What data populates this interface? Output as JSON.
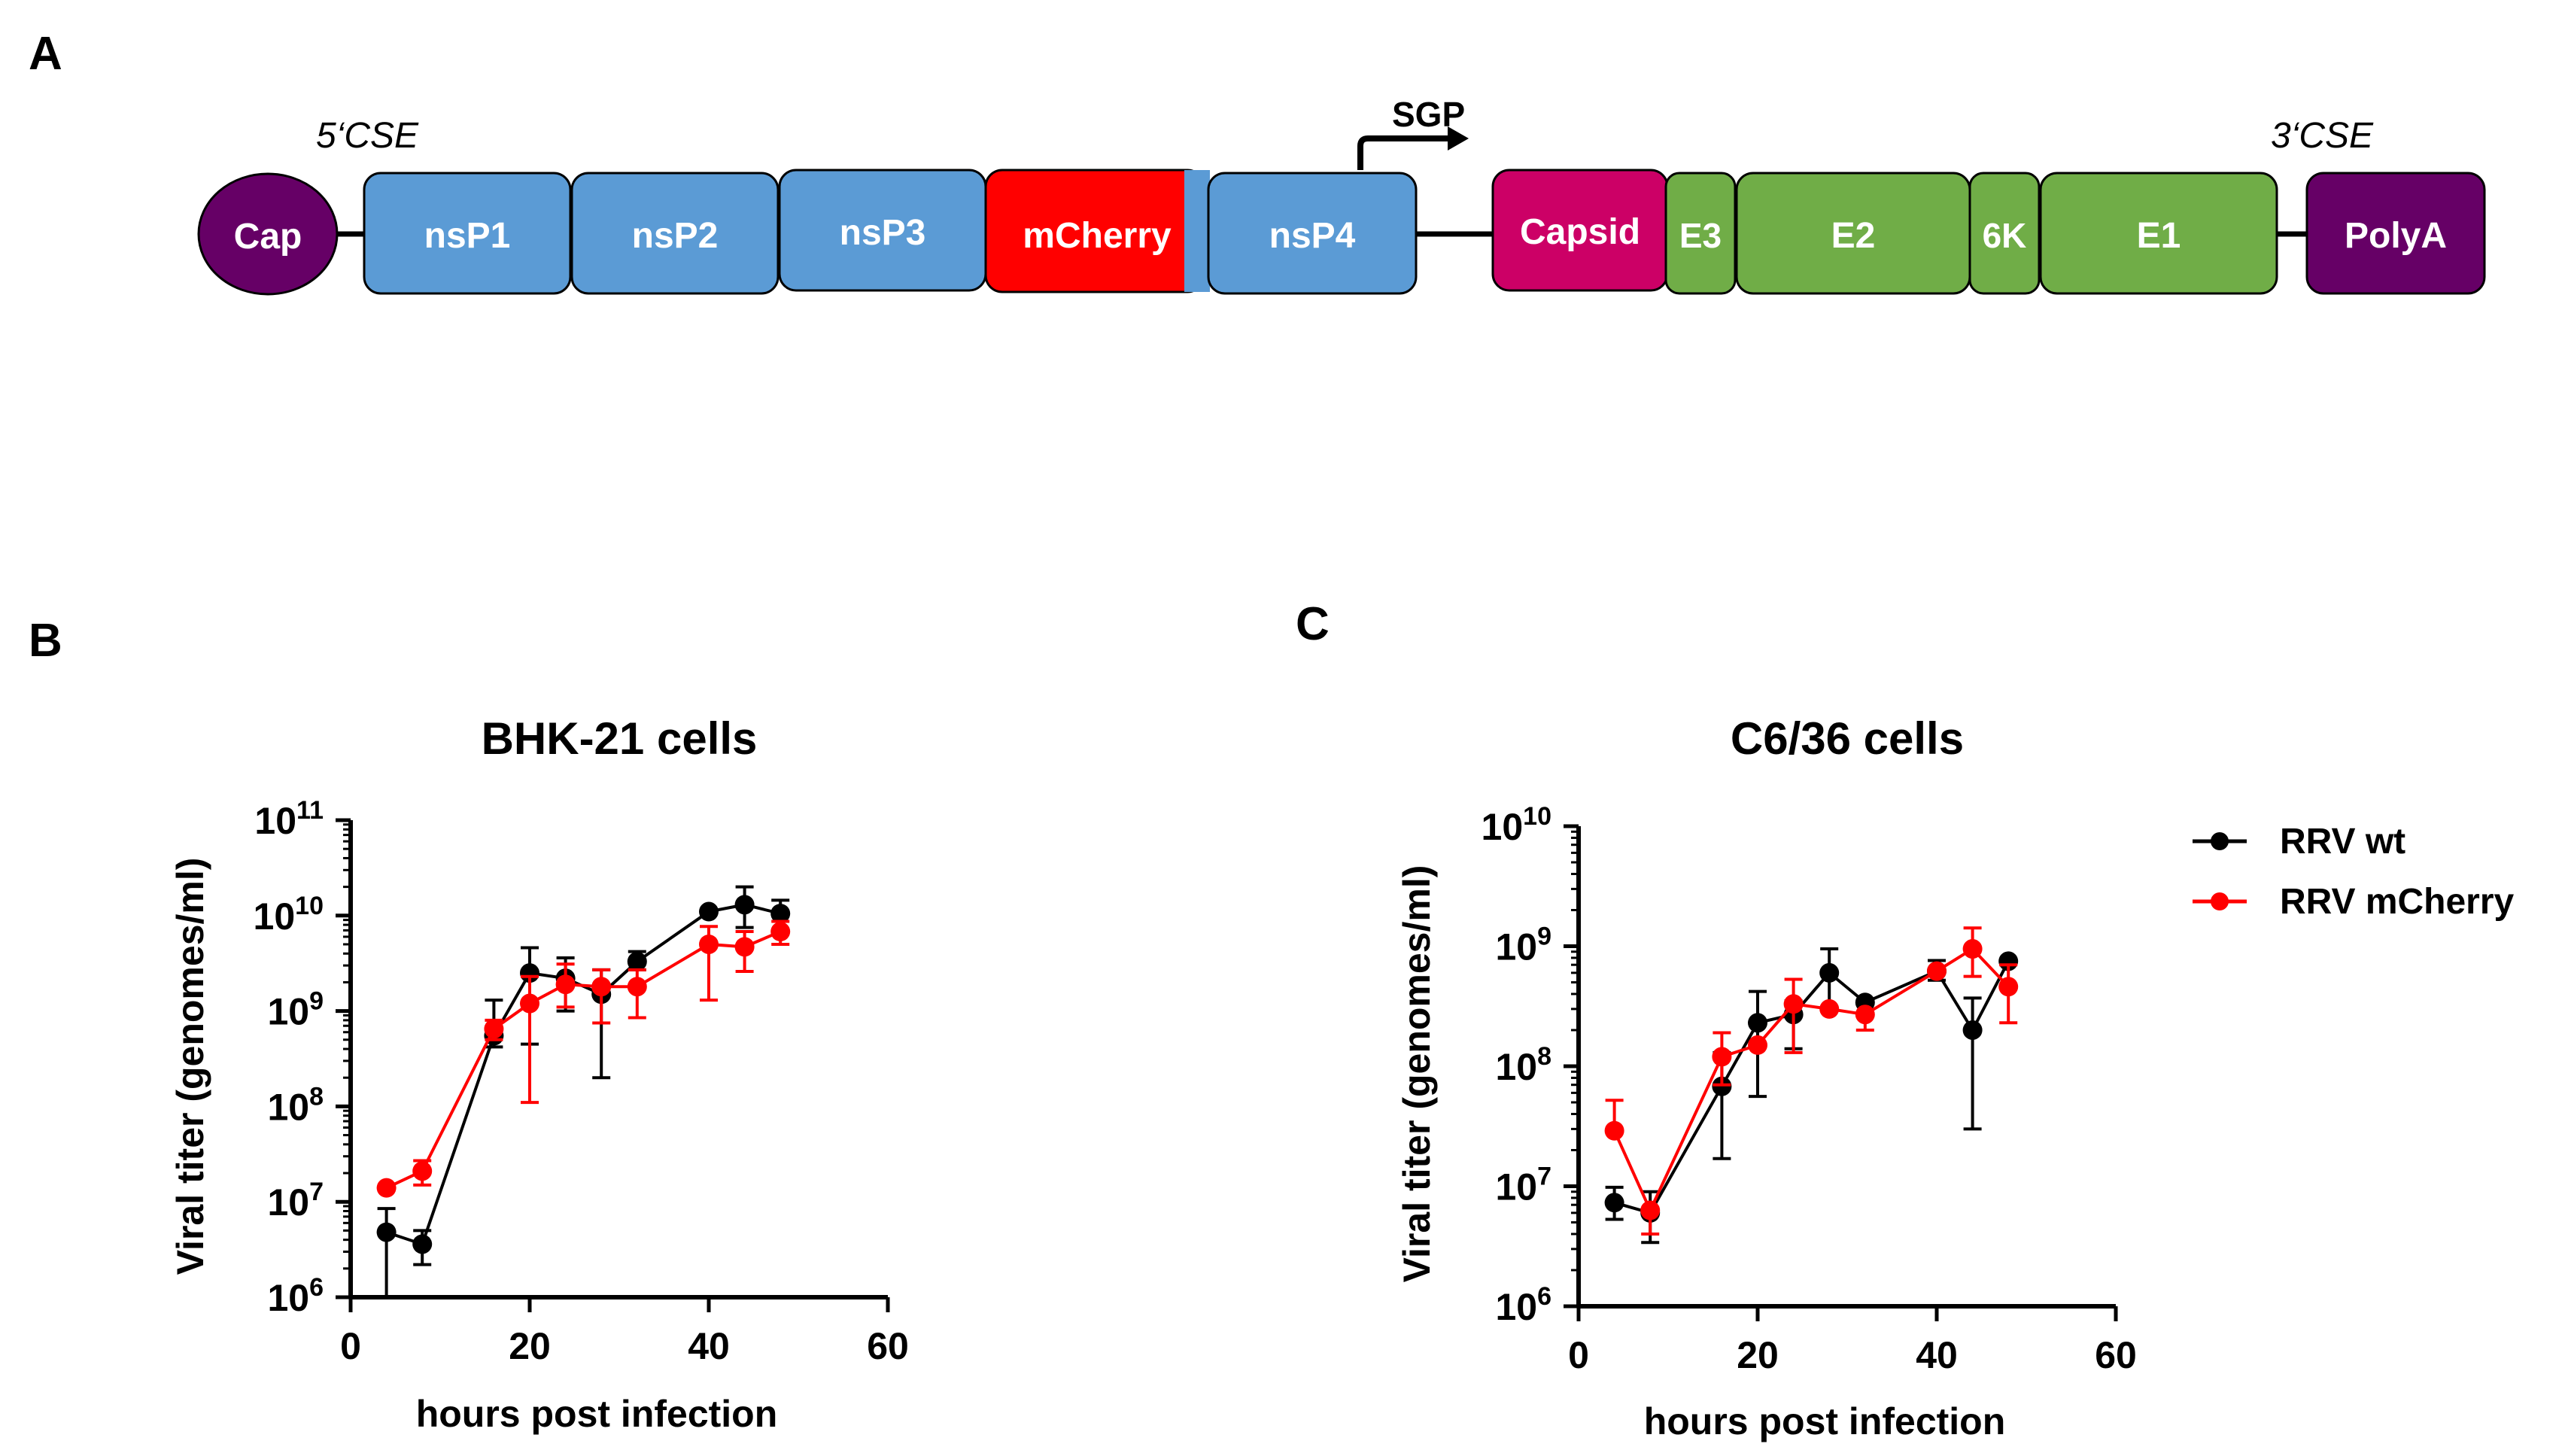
{
  "panels": {
    "a_label": "A",
    "b_label": "B",
    "c_label": "C"
  },
  "genome": {
    "cse5_label": "5‘CSE",
    "cse3_label": "3‘CSE",
    "sgp_label": "SGP",
    "cap": {
      "label": "Cap",
      "color": "#660066"
    },
    "polya": {
      "label": "PolyA",
      "color": "#660066"
    },
    "nonstructural": [
      {
        "label": "nsP1",
        "color": "#5b9bd5"
      },
      {
        "label": "nsP2",
        "color": "#5b9bd5"
      },
      {
        "label": "nsP3",
        "color": "#5b9bd5"
      },
      {
        "label": "mCherry",
        "color": "#ff0000"
      },
      {
        "label": "nsP4",
        "color": "#5b9bd5"
      }
    ],
    "structural": [
      {
        "label": "Capsid",
        "color": "#cc0066"
      },
      {
        "label": "E3",
        "color": "#70ad47"
      },
      {
        "label": "E2",
        "color": "#70ad47"
      },
      {
        "label": "6K",
        "color": "#70ad47"
      },
      {
        "label": "E1",
        "color": "#70ad47"
      }
    ]
  },
  "legend": {
    "items": [
      {
        "label": "RRV wt",
        "color": "#000000"
      },
      {
        "label": "RRV mCherry",
        "color": "#ff0000"
      }
    ]
  },
  "chart_data": [
    {
      "type": "line",
      "title": "BHK-21 cells",
      "xlabel": "hours post infection",
      "ylabel": "Viral titer (genomes/ml)",
      "xlim": [
        0,
        60
      ],
      "xticks": [
        0,
        20,
        40,
        60
      ],
      "ylim": [
        1000000,
        100000000000
      ],
      "yscale": "log",
      "yticks": [
        {
          "base": "10",
          "exp": "6"
        },
        {
          "base": "10",
          "exp": "7"
        },
        {
          "base": "10",
          "exp": "8"
        },
        {
          "base": "10",
          "exp": "9"
        },
        {
          "base": "10",
          "exp": "10"
        },
        {
          "base": "10",
          "exp": "11"
        }
      ],
      "grid": false,
      "series": [
        {
          "name": "RRV wt",
          "color": "#000000",
          "x": [
            4,
            8,
            16,
            20,
            24,
            28,
            32,
            40,
            44,
            48
          ],
          "y": [
            4800000,
            3600000,
            550000000,
            2500000000,
            2200000000,
            1500000000,
            3300000000,
            11000000000,
            13000000000,
            10500000000
          ],
          "err_low": [
            1000000,
            2200000,
            420000000,
            450000000,
            1000000000,
            200000000,
            2700000000,
            11000000000,
            7500000000,
            7000000000
          ],
          "err_high": [
            8500000,
            5000000,
            1300000000,
            4600000000,
            3600000000,
            2700000000,
            4200000000,
            11000000000,
            20000000000,
            14500000000
          ]
        },
        {
          "name": "RRV mCherry",
          "color": "#ff0000",
          "x": [
            4,
            8,
            16,
            20,
            24,
            28,
            32,
            40,
            44,
            48
          ],
          "y": [
            14000000,
            21000000,
            650000000,
            1200000000,
            1900000000,
            1800000000,
            1800000000,
            5000000000,
            4700000000,
            6800000000
          ],
          "err_low": [
            14000000,
            15000000,
            500000000,
            110000000,
            1100000000,
            750000000,
            850000000,
            1300000000,
            2600000000,
            5000000000
          ],
          "err_high": [
            14000000,
            27000000,
            800000000,
            2300000000,
            3100000000,
            2700000000,
            2700000000,
            7700000000,
            6800000000,
            8700000000
          ]
        }
      ]
    },
    {
      "type": "line",
      "title": "C6/36 cells",
      "xlabel": "hours post infection",
      "ylabel": "Viral titer (genomes/ml)",
      "xlim": [
        0,
        60
      ],
      "xticks": [
        0,
        20,
        40,
        60
      ],
      "ylim": [
        1000000,
        10000000000
      ],
      "yscale": "log",
      "yticks": [
        {
          "base": "10",
          "exp": "6"
        },
        {
          "base": "10",
          "exp": "7"
        },
        {
          "base": "10",
          "exp": "8"
        },
        {
          "base": "10",
          "exp": "9"
        },
        {
          "base": "10",
          "exp": "10"
        }
      ],
      "grid": false,
      "series": [
        {
          "name": "RRV wt",
          "color": "#000000",
          "x": [
            4,
            8,
            16,
            20,
            24,
            28,
            32,
            40,
            44,
            48
          ],
          "y": [
            7300000,
            6000000,
            68000000,
            230000000,
            270000000,
            600000000,
            340000000,
            620000000,
            200000000,
            750000000
          ],
          "err_low": [
            5300000,
            3400000,
            17000000,
            56000000,
            140000000,
            290000000,
            340000000,
            520000000,
            30000000,
            750000000
          ],
          "err_high": [
            9800000,
            9000000,
            130000000,
            420000000,
            350000000,
            950000000,
            340000000,
            760000000,
            370000000,
            750000000
          ]
        },
        {
          "name": "RRV mCherry",
          "color": "#ff0000",
          "x": [
            4,
            8,
            16,
            20,
            24,
            28,
            32,
            40,
            44,
            48
          ],
          "y": [
            29000000,
            6300000,
            120000000,
            150000000,
            330000000,
            300000000,
            270000000,
            620000000,
            950000000,
            460000000
          ],
          "err_low": [
            29000000,
            4000000,
            70000000,
            150000000,
            130000000,
            300000000,
            200000000,
            620000000,
            560000000,
            230000000
          ],
          "err_high": [
            52000000,
            6300000,
            190000000,
            150000000,
            530000000,
            300000000,
            270000000,
            620000000,
            1420000000,
            700000000
          ]
        }
      ]
    }
  ]
}
